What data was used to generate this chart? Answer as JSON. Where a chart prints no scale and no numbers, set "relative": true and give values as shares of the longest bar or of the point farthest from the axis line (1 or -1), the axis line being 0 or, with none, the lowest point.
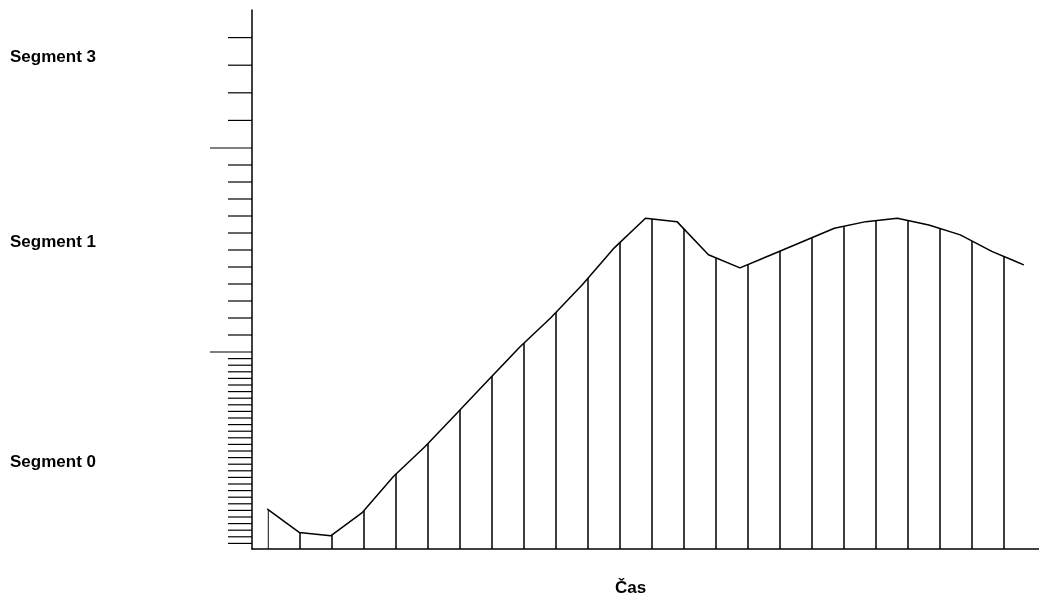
{
  "chart_data": {
    "type": "area",
    "relative": true,
    "xlabel": "Čas",
    "categories": [
      null,
      null,
      null,
      null,
      null,
      null,
      null,
      null,
      null,
      null,
      null,
      null,
      null,
      null,
      null,
      null,
      null,
      null,
      null,
      null,
      null,
      null,
      null,
      null,
      null
    ],
    "series": [
      {
        "color": "#000000",
        "values": [
          0.12,
          0.05,
          0.04,
          0.11,
          0.22,
          0.31,
          0.41,
          0.51,
          0.61,
          0.7,
          0.8,
          0.91,
          1.0,
          0.99,
          0.89,
          0.85,
          0.89,
          0.93,
          0.97,
          0.99,
          1.0,
          0.98,
          0.95,
          0.9,
          0.86
        ]
      }
    ],
    "annotations": [
      "Segment 3",
      "Segment 1",
      "Segment 0"
    ],
    "line_style": "solid"
  }
}
